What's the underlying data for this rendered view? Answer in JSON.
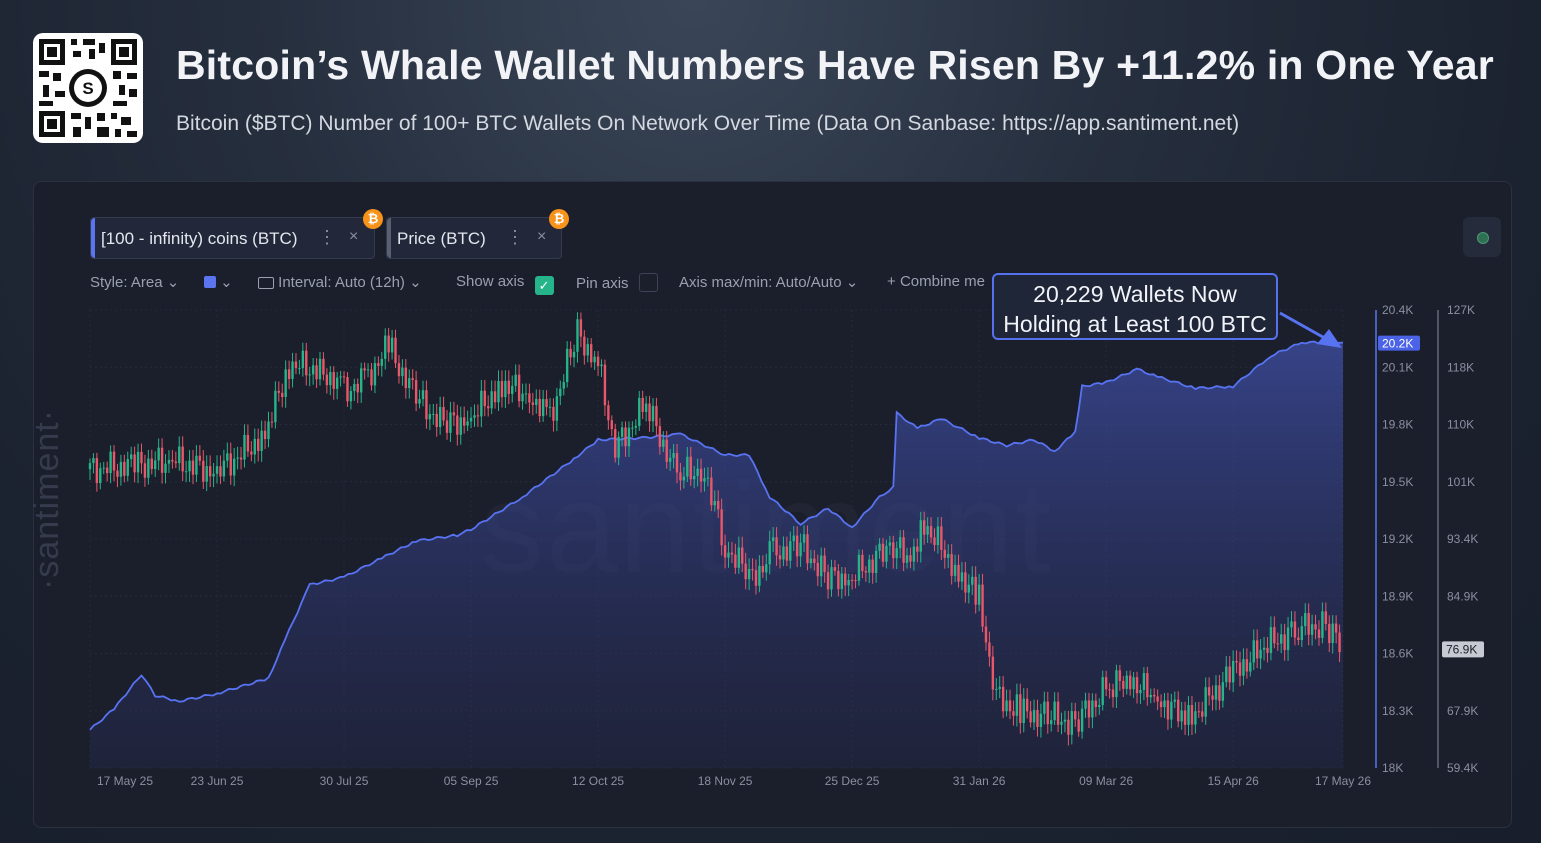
{
  "title": "Bitcoin’s Whale Wallet Numbers Have Risen By +11.2% in One Year",
  "subtitle": "Bitcoin ($BTC) Number of 100+ BTC Wallets On Network Over Time (Data On Sanbase: https://app.santiment.net)",
  "chips": [
    {
      "label": "[100 - infinity) coins (BTC)"
    },
    {
      "label": "Price (BTC)"
    }
  ],
  "toolbar": {
    "style": "Style: Area",
    "interval": "Interval: Auto (12h)",
    "show_axis": "Show axis",
    "pin_axis": "Pin axis",
    "axis_maxmin": "Axis max/min: Auto/Auto",
    "combine": "Combine me"
  },
  "annotation": {
    "line1": "20,229 Wallets Now",
    "line2": "Holding at Least 100 BTC"
  },
  "watermark": "santiment",
  "watermark_side": "·santiment·",
  "colors": {
    "wallets": "#5873f2",
    "candle_up": "#26b58a",
    "candle_down": "#e8576a",
    "accent": "#f7931a"
  },
  "chart_data": {
    "type": "area",
    "x_ticks": [
      "17 May 25",
      "23 Jun 25",
      "30 Jul 25",
      "05 Sep 25",
      "12 Oct 25",
      "18 Nov 25",
      "25 Dec 25",
      "31 Jan 26",
      "09 Mar 26",
      "15 Apr 26",
      "17 May 26"
    ],
    "left_axis": {
      "ticks": [
        "20.4K",
        "20.1K",
        "19.8K",
        "19.5K",
        "19.2K",
        "18.9K",
        "18.6K",
        "18.3K",
        "18K"
      ],
      "range": [
        18000,
        20400
      ],
      "current_label": "20.2K",
      "current_value": 20229
    },
    "right_axis": {
      "ticks": [
        "127K",
        "118K",
        "110K",
        "101K",
        "93.4K",
        "84.9K",
        "76.9K",
        "67.9K",
        "59.4K"
      ],
      "range": [
        59400,
        127000
      ],
      "current_label": "76.9K",
      "current_value": 76900
    },
    "series": [
      {
        "name": "[100 - infinity) coins (BTC)",
        "type": "area",
        "points": [
          [
            "17 May 25",
            18200
          ],
          [
            "24 May 25",
            18310
          ],
          [
            "01 Jun 25",
            18490
          ],
          [
            "05 Jun 25",
            18380
          ],
          [
            "12 Jun 25",
            18350
          ],
          [
            "23 Jun 25",
            18390
          ],
          [
            "08 Jul 25",
            18470
          ],
          [
            "14 Jul 25",
            18720
          ],
          [
            "20 Jul 25",
            18960
          ],
          [
            "30 Jul 25",
            19000
          ],
          [
            "10 Aug 25",
            19100
          ],
          [
            "20 Aug 25",
            19190
          ],
          [
            "01 Sep 25",
            19220
          ],
          [
            "05 Sep 25",
            19250
          ],
          [
            "20 Sep 25",
            19420
          ],
          [
            "05 Oct 25",
            19620
          ],
          [
            "12 Oct 25",
            19720
          ],
          [
            "25 Oct 25",
            19730
          ],
          [
            "05 Nov 25",
            19750
          ],
          [
            "18 Nov 25",
            19640
          ],
          [
            "25 Nov 25",
            19640
          ],
          [
            "01 Dec 25",
            19420
          ],
          [
            "10 Dec 25",
            19280
          ],
          [
            "18 Dec 25",
            19360
          ],
          [
            "25 Dec 25",
            19260
          ],
          [
            "02 Jan 26",
            19420
          ],
          [
            "06 Jan 26",
            19470
          ],
          [
            "07 Jan 26",
            19860
          ],
          [
            "13 Jan 26",
            19780
          ],
          [
            "20 Jan 26",
            19830
          ],
          [
            "31 Jan 26",
            19730
          ],
          [
            "08 Feb 26",
            19690
          ],
          [
            "16 Feb 26",
            19720
          ],
          [
            "22 Feb 26",
            19660
          ],
          [
            "28 Feb 26",
            19760
          ],
          [
            "02 Mar 26",
            20000
          ],
          [
            "09 Mar 26",
            20020
          ],
          [
            "18 Mar 26",
            20090
          ],
          [
            "24 Mar 26",
            20050
          ],
          [
            "04 Apr 26",
            19990
          ],
          [
            "15 Apr 26",
            20000
          ],
          [
            "26 Apr 26",
            20160
          ],
          [
            "05 May 26",
            20230
          ],
          [
            "17 May 26",
            20229
          ]
        ]
      },
      {
        "name": "Price (BTC)",
        "type": "candlestick",
        "close_points": [
          [
            "17 May 25",
            103500
          ],
          [
            "30 May 25",
            104000
          ],
          [
            "10 Jun 25",
            104800
          ],
          [
            "23 Jun 25",
            103000
          ],
          [
            "07 Jul 25",
            108500
          ],
          [
            "14 Jul 25",
            119000
          ],
          [
            "24 Jul 25",
            118000
          ],
          [
            "30 Jul 25",
            115000
          ],
          [
            "05 Aug 25",
            116500
          ],
          [
            "12 Aug 25",
            121500
          ],
          [
            "20 Aug 25",
            114000
          ],
          [
            "28 Aug 25",
            110000
          ],
          [
            "05 Sep 25",
            111000
          ],
          [
            "14 Sep 25",
            116000
          ],
          [
            "22 Sep 25",
            114500
          ],
          [
            "28 Sep 25",
            111000
          ],
          [
            "06 Oct 25",
            123500
          ],
          [
            "12 Oct 25",
            119000
          ],
          [
            "17 Oct 25",
            106500
          ],
          [
            "26 Oct 25",
            113000
          ],
          [
            "04 Nov 25",
            102500
          ],
          [
            "12 Nov 25",
            103500
          ],
          [
            "18 Nov 25",
            92000
          ],
          [
            "26 Nov 25",
            87500
          ],
          [
            "02 Dec 25",
            91000
          ],
          [
            "10 Dec 25",
            92300
          ],
          [
            "18 Dec 25",
            87300
          ],
          [
            "25 Dec 25",
            87600
          ],
          [
            "05 Jan 26",
            92000
          ],
          [
            "11 Jan 26",
            90500
          ],
          [
            "15 Jan 26",
            95500
          ],
          [
            "24 Jan 26",
            89000
          ],
          [
            "31 Jan 26",
            84000
          ],
          [
            "05 Feb 26",
            70000
          ],
          [
            "12 Feb 26",
            67500
          ],
          [
            "20 Feb 26",
            67000
          ],
          [
            "28 Feb 26",
            66000
          ],
          [
            "09 Mar 26",
            71000
          ],
          [
            "16 Mar 26",
            72500
          ],
          [
            "24 Mar 26",
            69500
          ],
          [
            "02 Apr 26",
            66500
          ],
          [
            "15 Apr 26",
            73500
          ],
          [
            "25 Apr 26",
            77500
          ],
          [
            "04 May 26",
            80000
          ],
          [
            "12 May 26",
            80500
          ],
          [
            "17 May 26",
            76900
          ]
        ]
      }
    ],
    "xlabel": "",
    "ylabel": "",
    "grid": true,
    "legend": "top-left"
  }
}
